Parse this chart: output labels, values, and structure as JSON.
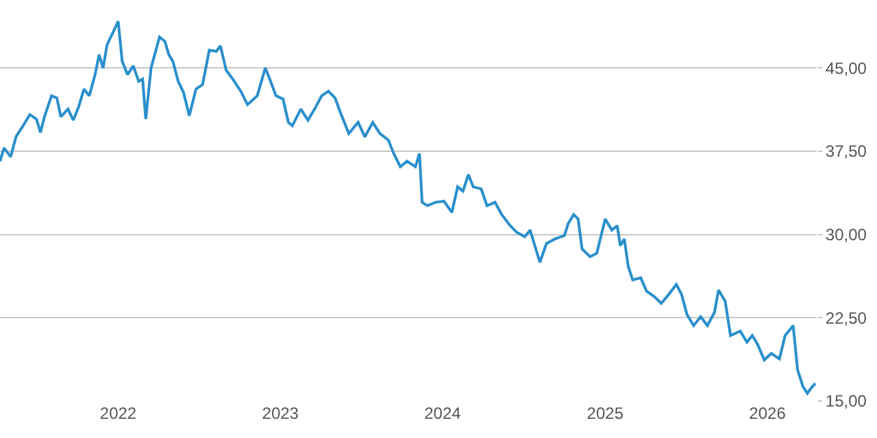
{
  "chart_data": {
    "type": "line",
    "x": [
      "2021-04-10",
      "2021-04-19",
      "2021-05-04",
      "2021-05-16",
      "2021-06-01",
      "2021-06-16",
      "2021-07-01",
      "2021-07-10",
      "2021-07-19",
      "2021-08-04",
      "2021-08-16",
      "2021-08-25",
      "2021-09-10",
      "2021-09-22",
      "2021-10-04",
      "2021-10-16",
      "2021-10-28",
      "2021-11-10",
      "2021-11-19",
      "2021-11-28",
      "2021-12-07",
      "2021-12-19",
      "2022-01-01",
      "2022-01-10",
      "2022-01-22",
      "2022-02-04",
      "2022-02-16",
      "2022-02-25",
      "2022-03-04",
      "2022-03-16",
      "2022-04-04",
      "2022-04-16",
      "2022-04-25",
      "2022-05-04",
      "2022-05-16",
      "2022-05-28",
      "2022-06-10",
      "2022-06-25",
      "2022-07-10",
      "2022-07-25",
      "2022-08-10",
      "2022-08-19",
      "2022-09-01",
      "2022-09-16",
      "2022-10-04",
      "2022-10-19",
      "2022-11-10",
      "2022-11-28",
      "2022-12-10",
      "2022-12-22",
      "2023-01-07",
      "2023-01-19",
      "2023-01-28",
      "2023-02-16",
      "2023-03-04",
      "2023-03-19",
      "2023-04-04",
      "2023-04-19",
      "2023-05-04",
      "2023-05-16",
      "2023-06-04",
      "2023-06-25",
      "2023-07-10",
      "2023-07-28",
      "2023-08-13",
      "2023-09-01",
      "2023-09-13",
      "2023-09-28",
      "2023-10-13",
      "2023-11-01",
      "2023-11-10",
      "2023-11-16",
      "2023-11-28",
      "2023-12-16",
      "2024-01-04",
      "2024-01-22",
      "2024-02-04",
      "2024-02-16",
      "2024-02-28",
      "2024-03-10",
      "2024-03-28",
      "2024-04-10",
      "2024-04-28",
      "2024-05-13",
      "2024-06-01",
      "2024-06-16",
      "2024-07-04",
      "2024-07-16",
      "2024-08-07",
      "2024-08-22",
      "2024-09-10",
      "2024-10-01",
      "2024-10-10",
      "2024-10-22",
      "2024-11-01",
      "2024-11-10",
      "2024-11-28",
      "2024-12-13",
      "2025-01-01",
      "2025-01-16",
      "2025-01-28",
      "2025-02-04",
      "2025-02-13",
      "2025-02-22",
      "2025-03-04",
      "2025-03-22",
      "2025-04-04",
      "2025-04-22",
      "2025-05-07",
      "2025-05-22",
      "2025-06-10",
      "2025-06-22",
      "2025-07-04",
      "2025-07-19",
      "2025-08-04",
      "2025-08-19",
      "2025-09-04",
      "2025-09-13",
      "2025-09-28",
      "2025-10-10",
      "2025-11-01",
      "2025-11-16",
      "2025-11-28",
      "2025-12-10",
      "2025-12-25",
      "2026-01-10",
      "2026-01-28",
      "2026-02-10",
      "2026-02-28",
      "2026-03-10",
      "2026-03-22",
      "2026-04-01",
      "2026-04-10",
      "2026-04-19"
    ],
    "series": [
      {
        "color": "#2a8fcc",
        "values": [
          36.6,
          37.8,
          37.0,
          38.8,
          39.8,
          40.8,
          40.4,
          39.2,
          40.6,
          42.5,
          42.3,
          40.6,
          41.3,
          40.3,
          41.5,
          43.1,
          42.5,
          44.4,
          46.2,
          45.0,
          47.1,
          48.1,
          49.2,
          45.6,
          44.4,
          45.2,
          43.8,
          44.0,
          40.4,
          45.0,
          47.8,
          47.4,
          46.2,
          45.6,
          43.8,
          42.8,
          40.7,
          43.1,
          43.5,
          46.6,
          46.5,
          47.0,
          44.8,
          44.0,
          42.9,
          41.7,
          42.5,
          45.0,
          43.8,
          42.5,
          42.2,
          40.1,
          39.8,
          41.3,
          40.3,
          41.3,
          42.5,
          42.9,
          42.3,
          41.0,
          39.1,
          40.1,
          38.8,
          40.1,
          39.1,
          38.5,
          37.3,
          36.1,
          36.6,
          36.1,
          37.3,
          32.9,
          32.6,
          32.9,
          33.0,
          32.0,
          34.3,
          33.9,
          35.4,
          34.3,
          34.1,
          32.6,
          32.9,
          31.8,
          30.8,
          30.2,
          29.8,
          30.4,
          27.5,
          29.2,
          29.6,
          29.9,
          31.0,
          31.8,
          31.4,
          28.7,
          28.0,
          28.3,
          31.4,
          30.4,
          30.8,
          29.0,
          29.6,
          27.1,
          25.9,
          26.1,
          24.9,
          24.4,
          23.8,
          24.5,
          25.5,
          24.6,
          22.8,
          21.8,
          22.6,
          21.8,
          23.0,
          25.0,
          24.0,
          20.9,
          21.3,
          20.3,
          20.9,
          20.1,
          18.7,
          19.3,
          18.8,
          20.9,
          21.8,
          17.8,
          16.3,
          15.7,
          16.2,
          16.6
        ]
      }
    ],
    "xlim": [
      "2021-04-10",
      "2026-04-22"
    ],
    "xticks": [
      {
        "value": "2022-01-01",
        "label": "2022"
      },
      {
        "value": "2023-01-01",
        "label": "2023"
      },
      {
        "value": "2024-01-01",
        "label": "2024"
      },
      {
        "value": "2025-01-01",
        "label": "2025"
      },
      {
        "value": "2026-01-01",
        "label": "2026"
      }
    ],
    "ylim": [
      15,
      51
    ],
    "yticks": [
      {
        "value": 15,
        "label": "15,00"
      },
      {
        "value": 22.5,
        "label": "22,50"
      },
      {
        "value": 30,
        "label": "30,00"
      },
      {
        "value": 37.5,
        "label": "37,50"
      },
      {
        "value": 45,
        "label": "45,00"
      }
    ],
    "grid": "y"
  }
}
